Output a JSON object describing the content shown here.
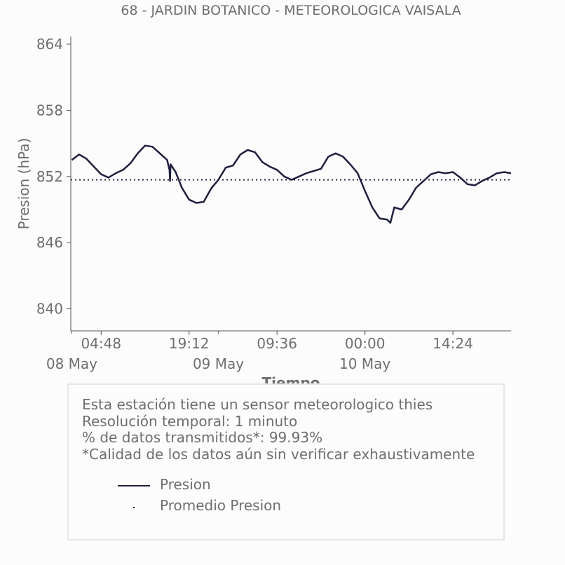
{
  "chart_data": {
    "type": "line",
    "title": "68 - JARDIN BOTANICO - METEOROLOGICA VAISALA",
    "xlabel": "Tiempo",
    "ylabel": "Presion (hPa)",
    "ylim": [
      838,
      864.7
    ],
    "yticks": [
      "840",
      "846",
      "852",
      "858",
      "864"
    ],
    "xticks": [
      "04:48",
      "19:12",
      "09:36",
      "00:00",
      "14:24"
    ],
    "xticks_secondary": [
      "08 May",
      "09 May",
      "10 May"
    ],
    "xrange": [
      "2023-05-07 23:50",
      "2023-05-10 23:55"
    ],
    "series": [
      {
        "name": "Presion",
        "color": "#1f1f3f",
        "style": "solid",
        "points": [
          [
            "2023-05-08 00:00",
            853.5
          ],
          [
            "2023-05-08 01:12",
            854.0
          ],
          [
            "2023-05-08 02:24",
            853.6
          ],
          [
            "2023-05-08 03:36",
            852.9
          ],
          [
            "2023-05-08 04:48",
            852.2
          ],
          [
            "2023-05-08 06:00",
            851.9
          ],
          [
            "2023-05-08 07:12",
            852.3
          ],
          [
            "2023-05-08 08:24",
            852.6
          ],
          [
            "2023-05-08 09:36",
            853.2
          ],
          [
            "2023-05-08 10:48",
            854.1
          ],
          [
            "2023-05-08 12:00",
            854.8
          ],
          [
            "2023-05-08 13:12",
            854.7
          ],
          [
            "2023-05-08 14:24",
            854.1
          ],
          [
            "2023-05-08 15:36",
            853.5
          ],
          [
            "2023-05-08 16:00",
            852.6
          ],
          [
            "2023-05-08 16:05",
            851.6
          ],
          [
            "2023-05-08 16:10",
            853.1
          ],
          [
            "2023-05-08 17:00",
            852.4
          ],
          [
            "2023-05-08 18:00",
            851.0
          ],
          [
            "2023-05-08 19:12",
            849.9
          ],
          [
            "2023-05-08 20:24",
            849.6
          ],
          [
            "2023-05-08 21:36",
            849.7
          ],
          [
            "2023-05-08 22:48",
            850.9
          ],
          [
            "2023-05-09 00:00",
            851.7
          ],
          [
            "2023-05-09 01:12",
            852.8
          ],
          [
            "2023-05-09 02:24",
            853.0
          ],
          [
            "2023-05-09 03:36",
            854.0
          ],
          [
            "2023-05-09 04:48",
            854.4
          ],
          [
            "2023-05-09 06:00",
            854.2
          ],
          [
            "2023-05-09 07:12",
            853.3
          ],
          [
            "2023-05-09 08:24",
            852.9
          ],
          [
            "2023-05-09 09:36",
            852.6
          ],
          [
            "2023-05-09 10:48",
            852.0
          ],
          [
            "2023-05-09 12:00",
            851.7
          ],
          [
            "2023-05-09 13:12",
            852.0
          ],
          [
            "2023-05-09 14:24",
            852.3
          ],
          [
            "2023-05-09 15:36",
            852.5
          ],
          [
            "2023-05-09 16:48",
            852.7
          ],
          [
            "2023-05-09 18:00",
            853.8
          ],
          [
            "2023-05-09 19:12",
            854.1
          ],
          [
            "2023-05-09 20:24",
            853.8
          ],
          [
            "2023-05-09 21:36",
            853.1
          ],
          [
            "2023-05-09 22:48",
            852.3
          ],
          [
            "2023-05-10 00:00",
            850.7
          ],
          [
            "2023-05-10 01:12",
            849.2
          ],
          [
            "2023-05-10 02:24",
            848.2
          ],
          [
            "2023-05-10 03:36",
            848.1
          ],
          [
            "2023-05-10 04:10",
            847.8
          ],
          [
            "2023-05-10 04:48",
            849.2
          ],
          [
            "2023-05-10 06:00",
            849.0
          ],
          [
            "2023-05-10 07:12",
            849.9
          ],
          [
            "2023-05-10 08:24",
            851.0
          ],
          [
            "2023-05-10 09:36",
            851.6
          ],
          [
            "2023-05-10 10:48",
            852.2
          ],
          [
            "2023-05-10 12:00",
            852.4
          ],
          [
            "2023-05-10 13:12",
            852.3
          ],
          [
            "2023-05-10 14:24",
            852.4
          ],
          [
            "2023-05-10 15:36",
            851.9
          ],
          [
            "2023-05-10 16:48",
            851.3
          ],
          [
            "2023-05-10 18:00",
            851.2
          ],
          [
            "2023-05-10 19:12",
            851.6
          ],
          [
            "2023-05-10 20:24",
            851.9
          ],
          [
            "2023-05-10 21:36",
            852.3
          ],
          [
            "2023-05-10 22:48",
            852.4
          ],
          [
            "2023-05-10 23:55",
            852.3
          ],
          [
            "2023-05-11 01:12",
            851.6
          ],
          [
            "2023-05-11 02:24",
            850.4
          ],
          [
            "2023-05-11 03:36",
            849.7
          ],
          [
            "2023-05-11 04:48",
            849.0
          ],
          [
            "2023-05-11 06:00",
            848.4
          ],
          [
            "2023-05-11 07:12",
            848.3
          ],
          [
            "2023-05-11 08:24",
            848.0
          ],
          [
            "2023-05-11 09:36",
            848.2
          ],
          [
            "2023-05-11 10:48",
            849.5
          ],
          [
            "2023-05-11 12:00",
            850.4
          ],
          [
            "2023-05-11 13:12",
            850.8
          ],
          [
            "2023-05-11 14:00",
            851.6
          ]
        ]
      },
      {
        "name": "Promedio Presion",
        "color": "#1f1f3f",
        "style": "dotted",
        "value": 851.7
      }
    ],
    "legend": [
      "Presion",
      "Promedio Presion"
    ],
    "grid": false
  },
  "info": {
    "lines": [
      "Esta estación tiene un sensor meteorologico thies",
      "Resolución temporal: 1 minuto",
      "% de datos transmitidos*: 99.93%",
      "*Calidad de los datos aún sin verificar exhaustivamente"
    ]
  }
}
